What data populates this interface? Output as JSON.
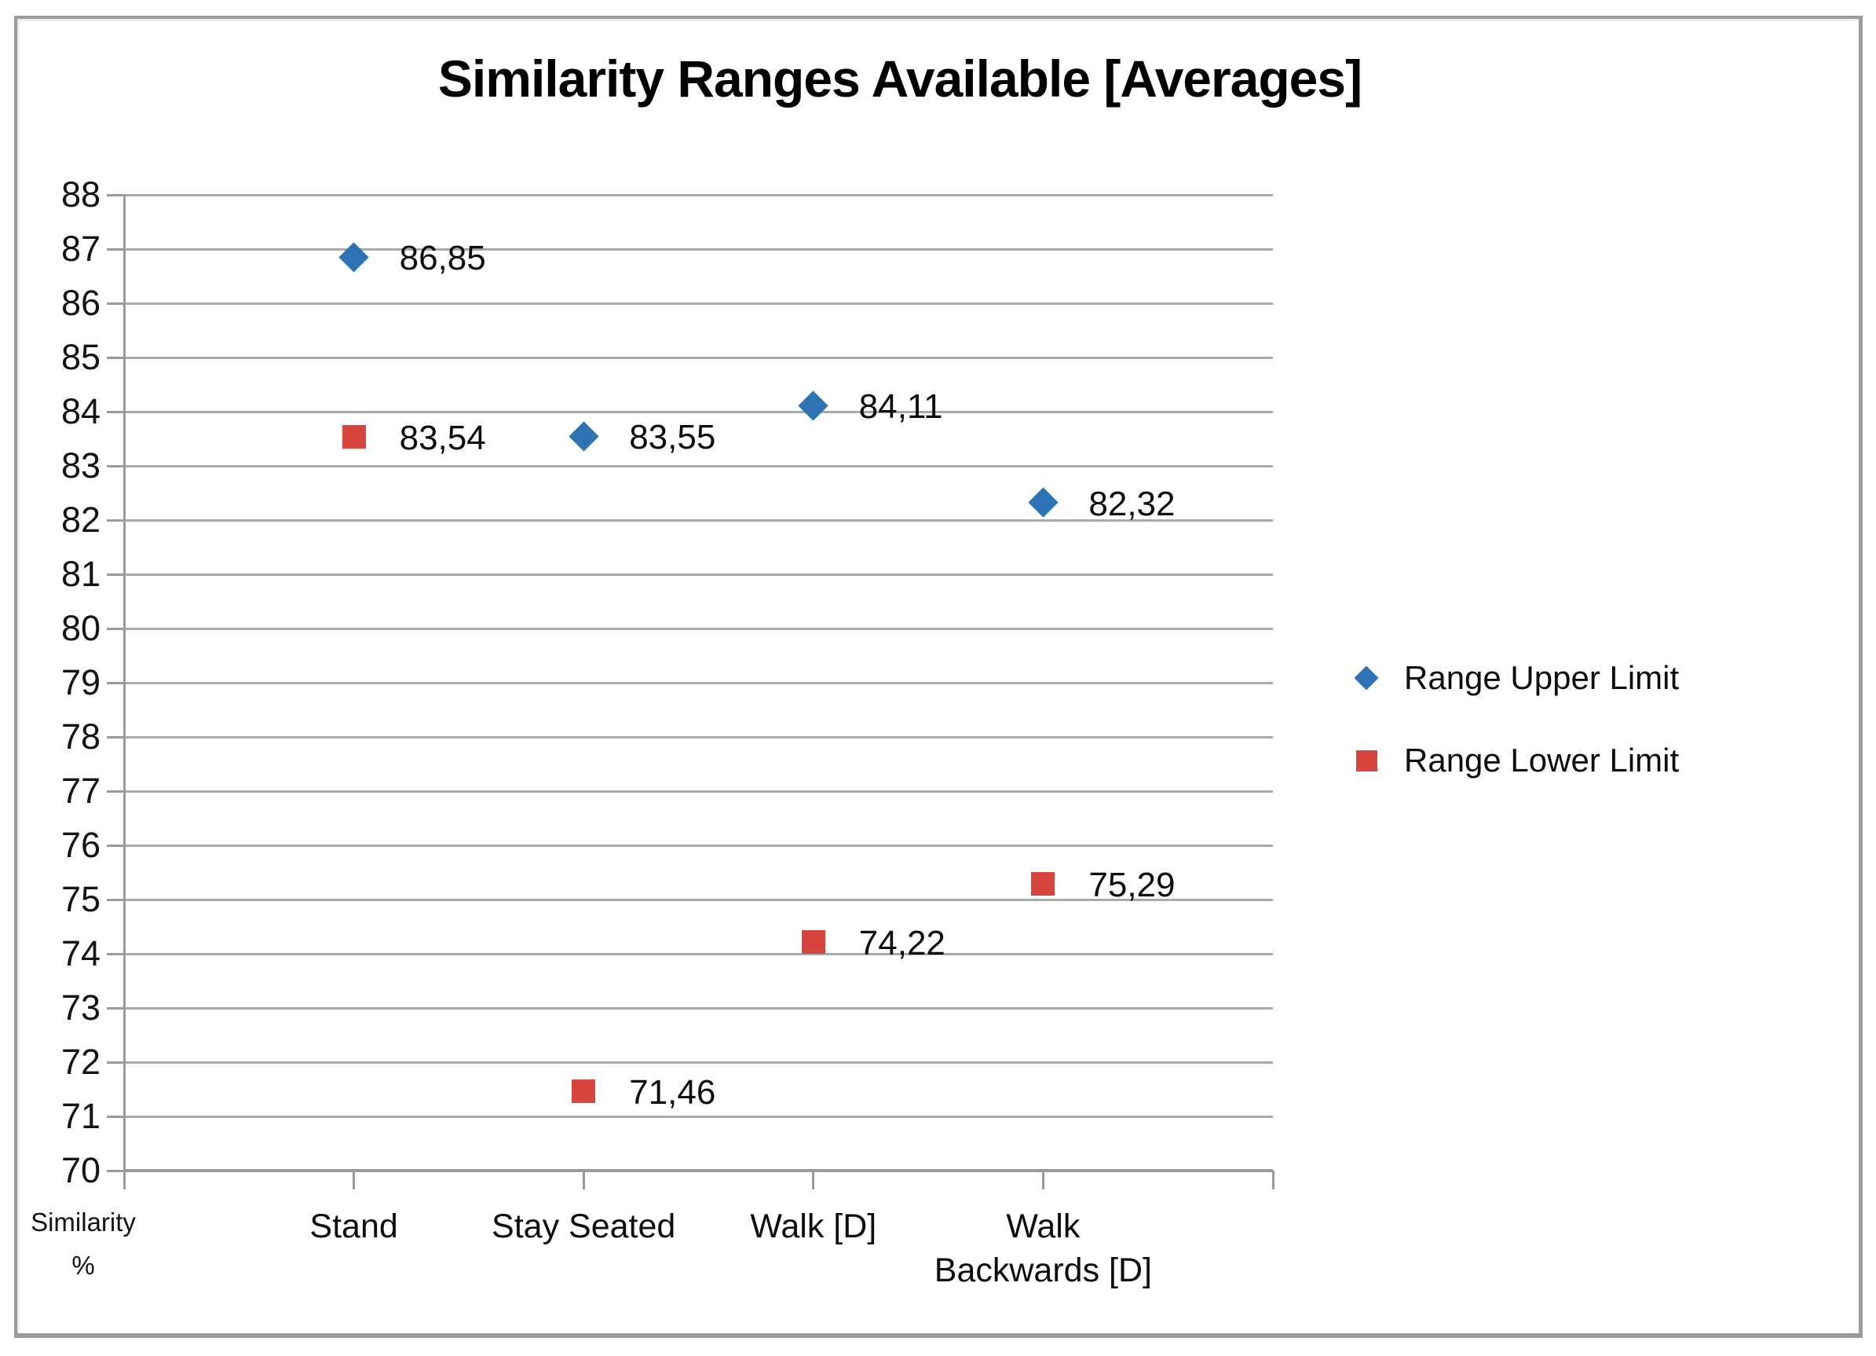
{
  "chart_data": {
    "type": "scatter",
    "title": "Similarity Ranges Available [Averages]",
    "categories": [
      "Stand",
      "Stay Seated",
      "Walk [D]",
      "Walk Backwards [D]"
    ],
    "category_display_lines": [
      [
        "Stand"
      ],
      [
        "Stay Seated"
      ],
      [
        "Walk [D]"
      ],
      [
        "Walk",
        "Backwards [D]"
      ]
    ],
    "series": [
      {
        "name": "Range Upper Limit",
        "marker": "diamond",
        "color": "#2E74B5",
        "values": [
          86.85,
          83.55,
          84.11,
          82.32
        ],
        "point_labels": [
          "86,85",
          "83,55",
          "84,11",
          "82,32"
        ]
      },
      {
        "name": "Range Lower Limit",
        "marker": "square",
        "color": "#D8453E",
        "values": [
          83.54,
          71.46,
          74.22,
          75.29
        ],
        "point_labels": [
          "83,54",
          "71,46",
          "74,22",
          "75,29"
        ]
      }
    ],
    "xlabel": "",
    "ylabel": "Similarity %",
    "ylabel_lines": [
      "Similarity",
      "%"
    ],
    "ylim": [
      70,
      88
    ],
    "ytick_step": 1,
    "yticks": [
      70,
      71,
      72,
      73,
      74,
      75,
      76,
      77,
      78,
      79,
      80,
      81,
      82,
      83,
      84,
      85,
      86,
      87,
      88
    ],
    "grid": true,
    "legend_position": "right",
    "decimal_separator": ","
  },
  "colors": {
    "upper_series": "#2E74B5",
    "lower_series": "#D8453E",
    "gridline": "#A9A9A9",
    "axis_line": "#9A9A9A",
    "text": "#141414",
    "frame_border": "#9C9C9C",
    "background": "#FFFFFF"
  }
}
